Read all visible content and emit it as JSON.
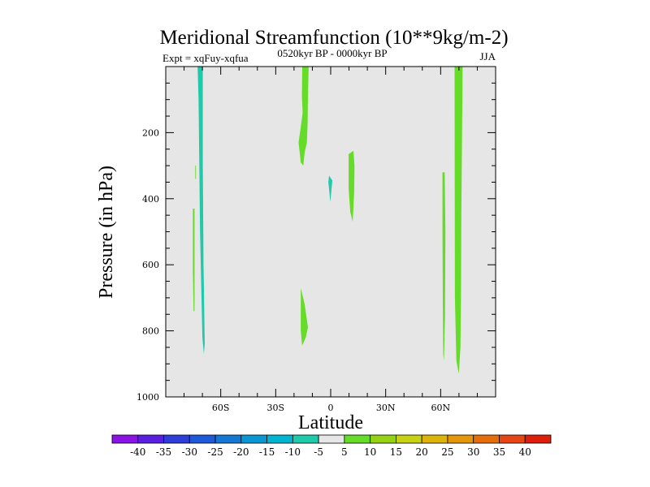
{
  "chart_data": {
    "type": "heatmap",
    "title": "Meridional Streamfunction (10**9kg/m-2)",
    "subtitle_left": "Expt = xqFuy-xqfua",
    "subtitle_center": "0520kyr BP - 0000kyr BP",
    "subtitle_right": "JJA",
    "xlabel": "Latitude",
    "ylabel": "Pressure (in hPa)",
    "xlim": [
      -90,
      90
    ],
    "ylim": [
      1000,
      0
    ],
    "x_ticks": [
      {
        "value": -60,
        "label": "60S"
      },
      {
        "value": -30,
        "label": "30S"
      },
      {
        "value": 0,
        "label": "0"
      },
      {
        "value": 30,
        "label": "30N"
      },
      {
        "value": 60,
        "label": "60N"
      }
    ],
    "y_ticks": [
      {
        "value": 200,
        "label": "200"
      },
      {
        "value": 400,
        "label": "400"
      },
      {
        "value": 600,
        "label": "600"
      },
      {
        "value": 800,
        "label": "800"
      },
      {
        "value": 1000,
        "label": "1000"
      }
    ],
    "background_color": "#e6e6e6",
    "colorbar": {
      "labels": [
        "-40",
        "-35",
        "-30",
        "-25",
        "-20",
        "-15",
        "-10",
        "-5",
        "5",
        "10",
        "15",
        "20",
        "25",
        "30",
        "35",
        "40"
      ],
      "colors": [
        "#8a14e6",
        "#5a1ee0",
        "#2e3cd8",
        "#1e5ad8",
        "#1478d2",
        "#0a96d2",
        "#00b4d2",
        "#1ecaaa",
        "#e6e6e6",
        "#64dc28",
        "#96d214",
        "#c8d214",
        "#dcb40a",
        "#e6960a",
        "#e66e0a",
        "#e64614",
        "#dc1e0a"
      ]
    },
    "regions": [
      {
        "value_class": "-10 to -5",
        "color": "#1ecaaa",
        "points": [
          [
            -72.6,
            1
          ],
          [
            -69.8,
            1
          ],
          [
            -69.8,
            300
          ],
          [
            -69.4,
            600
          ],
          [
            -68.7,
            840
          ],
          [
            -69.2,
            870
          ],
          [
            -70.0,
            820
          ],
          [
            -71.3,
            500
          ],
          [
            -72.1,
            100
          ]
        ]
      },
      {
        "value_class": "5 to 10",
        "color": "#64dc28",
        "points": [
          [
            -73.9,
            300
          ],
          [
            -73.5,
            300
          ],
          [
            -73.5,
            340
          ],
          [
            -73.9,
            340
          ]
        ]
      },
      {
        "value_class": "5 to 10",
        "color": "#64dc28",
        "points": [
          [
            -75.2,
            430
          ],
          [
            -74.3,
            430
          ],
          [
            -74.3,
            740
          ],
          [
            -74.8,
            740
          ],
          [
            -75.2,
            620
          ]
        ]
      },
      {
        "value_class": "5 to 10",
        "color": "#64dc28",
        "points": [
          [
            -15.5,
            1
          ],
          [
            -12.0,
            1
          ],
          [
            -12.4,
            90
          ],
          [
            -12.6,
            170
          ],
          [
            -13.0,
            230
          ],
          [
            -14.2,
            260
          ],
          [
            -15.0,
            300
          ],
          [
            -16.3,
            290
          ],
          [
            -17.5,
            230
          ],
          [
            -16.5,
            190
          ],
          [
            -15.3,
            140
          ],
          [
            -15.7,
            90
          ]
        ]
      },
      {
        "value_class": "-10 to -5",
        "color": "#1ecaaa",
        "points": [
          [
            -0.9,
            330
          ],
          [
            0.9,
            345
          ],
          [
            0.4,
            375
          ],
          [
            -0.2,
            410
          ],
          [
            -0.8,
            375
          ],
          [
            -1.3,
            350
          ]
        ]
      },
      {
        "value_class": "5 to 10",
        "color": "#64dc28",
        "points": [
          [
            9.8,
            265
          ],
          [
            12.4,
            255
          ],
          [
            13.0,
            300
          ],
          [
            12.8,
            380
          ],
          [
            12.0,
            470
          ],
          [
            10.7,
            440
          ],
          [
            9.8,
            370
          ]
        ]
      },
      {
        "value_class": "5 to 10",
        "color": "#64dc28",
        "points": [
          [
            -16.3,
            670
          ],
          [
            -14.2,
            720
          ],
          [
            -12.4,
            790
          ],
          [
            -13.6,
            820
          ],
          [
            -15.6,
            845
          ],
          [
            -16.3,
            800
          ]
        ]
      },
      {
        "value_class": "5 to 10",
        "color": "#64dc28",
        "points": [
          [
            61.0,
            320
          ],
          [
            62.2,
            320
          ],
          [
            62.6,
            500
          ],
          [
            62.4,
            760
          ],
          [
            61.8,
            890
          ],
          [
            61.4,
            870
          ],
          [
            61.2,
            700
          ],
          [
            61.0,
            500
          ]
        ]
      },
      {
        "value_class": "5 to 10",
        "color": "#64dc28",
        "points": [
          [
            67.6,
            1
          ],
          [
            72.0,
            1
          ],
          [
            71.7,
            200
          ],
          [
            71.3,
            450
          ],
          [
            71.1,
            700
          ],
          [
            70.8,
            850
          ],
          [
            69.9,
            930
          ],
          [
            68.6,
            890
          ],
          [
            67.8,
            700
          ],
          [
            67.7,
            400
          ]
        ]
      }
    ]
  }
}
